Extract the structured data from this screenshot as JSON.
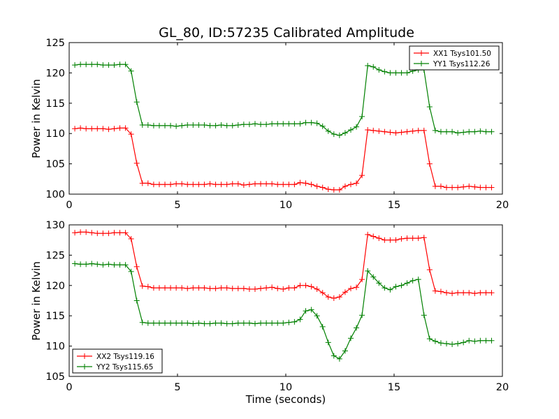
{
  "title": "GL_80, ID:57235 Calibrated Amplitude",
  "colors": {
    "red": "#ff0000",
    "green": "#008000",
    "axes": "#000000",
    "background": "#ffffff"
  },
  "chart_data": [
    {
      "type": "line",
      "title": "GL_80, ID:57235 Calibrated Amplitude",
      "xlabel": "",
      "ylabel": "Power in Kelvin",
      "xlim": [
        0,
        20
      ],
      "ylim": [
        100,
        125
      ],
      "xticks": [
        "0",
        "5",
        "10",
        "15",
        "20"
      ],
      "yticks": [
        "100",
        "105",
        "110",
        "115",
        "120",
        "125"
      ],
      "grid": false,
      "legend_position": "top-right",
      "series": [
        {
          "name": "XX1 Tsys101.50",
          "color": "#ff0000",
          "x": [
            0.26,
            0.52,
            0.78,
            1.04,
            1.3,
            1.56,
            1.82,
            2.08,
            2.34,
            2.6,
            2.86,
            3.12,
            3.38,
            3.64,
            3.9,
            4.16,
            4.42,
            4.68,
            4.94,
            5.2,
            5.46,
            5.72,
            5.98,
            6.24,
            6.5,
            6.76,
            7.02,
            7.28,
            7.54,
            7.8,
            8.06,
            8.32,
            8.58,
            8.84,
            9.1,
            9.36,
            9.62,
            9.88,
            10.14,
            10.4,
            10.66,
            10.92,
            11.18,
            11.44,
            11.7,
            11.96,
            12.22,
            12.48,
            12.74,
            13.0,
            13.26,
            13.52,
            13.78,
            14.04,
            14.3,
            14.56,
            14.82,
            15.08,
            15.34,
            15.6,
            15.86,
            16.12,
            16.38,
            16.64,
            16.9,
            17.16,
            17.42,
            17.68,
            17.94,
            18.2,
            18.46,
            18.72,
            18.98,
            19.24,
            19.5
          ],
          "y": [
            110.8,
            110.9,
            110.8,
            110.8,
            110.8,
            110.8,
            110.7,
            110.8,
            110.9,
            110.9,
            109.9,
            105.1,
            101.8,
            101.8,
            101.6,
            101.6,
            101.6,
            101.6,
            101.7,
            101.7,
            101.6,
            101.6,
            101.6,
            101.6,
            101.7,
            101.6,
            101.6,
            101.6,
            101.7,
            101.7,
            101.5,
            101.6,
            101.7,
            101.7,
            101.7,
            101.7,
            101.6,
            101.6,
            101.6,
            101.6,
            101.9,
            101.8,
            101.6,
            101.3,
            101.1,
            100.8,
            100.7,
            100.7,
            101.3,
            101.6,
            101.8,
            103.1,
            110.6,
            110.5,
            110.4,
            110.3,
            110.2,
            110.1,
            110.2,
            110.3,
            110.4,
            110.5,
            110.5,
            105.0,
            101.3,
            101.3,
            101.1,
            101.1,
            101.1,
            101.2,
            101.3,
            101.2,
            101.1,
            101.1,
            101.1
          ]
        },
        {
          "name": "YY1 Tsys112.26",
          "color": "#008000",
          "x": [
            0.26,
            0.52,
            0.78,
            1.04,
            1.3,
            1.56,
            1.82,
            2.08,
            2.34,
            2.6,
            2.86,
            3.12,
            3.38,
            3.64,
            3.9,
            4.16,
            4.42,
            4.68,
            4.94,
            5.2,
            5.46,
            5.72,
            5.98,
            6.24,
            6.5,
            6.76,
            7.02,
            7.28,
            7.54,
            7.8,
            8.06,
            8.32,
            8.58,
            8.84,
            9.1,
            9.36,
            9.62,
            9.88,
            10.14,
            10.4,
            10.66,
            10.92,
            11.18,
            11.44,
            11.7,
            11.96,
            12.22,
            12.48,
            12.74,
            13.0,
            13.26,
            13.52,
            13.78,
            14.04,
            14.3,
            14.56,
            14.82,
            15.08,
            15.34,
            15.6,
            15.86,
            16.12,
            16.38,
            16.64,
            16.9,
            17.16,
            17.42,
            17.68,
            17.94,
            18.2,
            18.46,
            18.72,
            18.98,
            19.24,
            19.5
          ],
          "y": [
            121.3,
            121.4,
            121.4,
            121.4,
            121.4,
            121.3,
            121.3,
            121.3,
            121.4,
            121.4,
            120.3,
            115.2,
            111.4,
            111.4,
            111.3,
            111.3,
            111.3,
            111.3,
            111.2,
            111.3,
            111.4,
            111.4,
            111.4,
            111.4,
            111.3,
            111.3,
            111.4,
            111.3,
            111.3,
            111.4,
            111.5,
            111.5,
            111.6,
            111.5,
            111.5,
            111.6,
            111.6,
            111.6,
            111.6,
            111.6,
            111.6,
            111.8,
            111.8,
            111.7,
            111.2,
            110.4,
            109.9,
            109.7,
            110.1,
            110.6,
            111.1,
            112.8,
            121.2,
            121.0,
            120.5,
            120.2,
            120.0,
            120.0,
            120.0,
            120.0,
            120.3,
            120.5,
            120.5,
            114.4,
            110.5,
            110.3,
            110.3,
            110.3,
            110.1,
            110.2,
            110.3,
            110.3,
            110.4,
            110.3,
            110.3
          ]
        }
      ]
    },
    {
      "type": "line",
      "title": "",
      "xlabel": "Time (seconds)",
      "ylabel": "Power in Kelvin",
      "xlim": [
        0,
        20
      ],
      "ylim": [
        105,
        130
      ],
      "xticks": [
        "0",
        "5",
        "10",
        "15",
        "20"
      ],
      "yticks": [
        "105",
        "110",
        "115",
        "120",
        "125",
        "130"
      ],
      "grid": false,
      "legend_position": "bottom-left",
      "series": [
        {
          "name": "XX2 Tsys119.16",
          "color": "#ff0000",
          "x": [
            0.26,
            0.52,
            0.78,
            1.04,
            1.3,
            1.56,
            1.82,
            2.08,
            2.34,
            2.6,
            2.86,
            3.12,
            3.38,
            3.64,
            3.9,
            4.16,
            4.42,
            4.68,
            4.94,
            5.2,
            5.46,
            5.72,
            5.98,
            6.24,
            6.5,
            6.76,
            7.02,
            7.28,
            7.54,
            7.8,
            8.06,
            8.32,
            8.58,
            8.84,
            9.1,
            9.36,
            9.62,
            9.88,
            10.14,
            10.4,
            10.66,
            10.92,
            11.18,
            11.44,
            11.7,
            11.96,
            12.22,
            12.48,
            12.74,
            13.0,
            13.26,
            13.52,
            13.78,
            14.04,
            14.3,
            14.56,
            14.82,
            15.08,
            15.34,
            15.6,
            15.86,
            16.12,
            16.38,
            16.64,
            16.9,
            17.16,
            17.42,
            17.68,
            17.94,
            18.2,
            18.46,
            18.72,
            18.98,
            19.24,
            19.5
          ],
          "y": [
            128.7,
            128.8,
            128.8,
            128.7,
            128.6,
            128.6,
            128.6,
            128.7,
            128.7,
            128.7,
            127.7,
            123.1,
            119.9,
            119.8,
            119.6,
            119.6,
            119.6,
            119.6,
            119.6,
            119.6,
            119.5,
            119.6,
            119.6,
            119.6,
            119.5,
            119.5,
            119.6,
            119.6,
            119.5,
            119.5,
            119.5,
            119.4,
            119.4,
            119.5,
            119.6,
            119.7,
            119.5,
            119.4,
            119.6,
            119.6,
            120.0,
            120.0,
            119.8,
            119.4,
            118.8,
            118.1,
            117.9,
            118.1,
            118.9,
            119.5,
            119.7,
            121.0,
            128.4,
            128.1,
            127.8,
            127.5,
            127.5,
            127.5,
            127.7,
            127.8,
            127.8,
            127.8,
            127.9,
            122.6,
            119.1,
            119.0,
            118.8,
            118.7,
            118.8,
            118.8,
            118.8,
            118.7,
            118.8,
            118.8,
            118.8
          ]
        },
        {
          "name": "YY2 Tsys115.65",
          "color": "#008000",
          "x": [
            0.26,
            0.52,
            0.78,
            1.04,
            1.3,
            1.56,
            1.82,
            2.08,
            2.34,
            2.6,
            2.86,
            3.12,
            3.38,
            3.64,
            3.9,
            4.16,
            4.42,
            4.68,
            4.94,
            5.2,
            5.46,
            5.72,
            5.98,
            6.24,
            6.5,
            6.76,
            7.02,
            7.28,
            7.54,
            7.8,
            8.06,
            8.32,
            8.58,
            8.84,
            9.1,
            9.36,
            9.62,
            9.88,
            10.14,
            10.4,
            10.66,
            10.92,
            11.18,
            11.44,
            11.7,
            11.96,
            12.22,
            12.48,
            12.74,
            13.0,
            13.26,
            13.52,
            13.78,
            14.04,
            14.3,
            14.56,
            14.82,
            15.08,
            15.34,
            15.6,
            15.86,
            16.12,
            16.38,
            16.64,
            16.9,
            17.16,
            17.42,
            17.68,
            17.94,
            18.2,
            18.46,
            18.72,
            18.98,
            19.24,
            19.5
          ],
          "y": [
            123.6,
            123.5,
            123.5,
            123.6,
            123.5,
            123.4,
            123.5,
            123.4,
            123.4,
            123.4,
            122.3,
            117.5,
            113.9,
            113.8,
            113.8,
            113.8,
            113.8,
            113.8,
            113.8,
            113.8,
            113.8,
            113.7,
            113.8,
            113.7,
            113.7,
            113.8,
            113.8,
            113.7,
            113.7,
            113.8,
            113.8,
            113.8,
            113.7,
            113.8,
            113.8,
            113.8,
            113.8,
            113.8,
            113.9,
            114.0,
            114.4,
            115.8,
            116.0,
            115.0,
            113.2,
            110.6,
            108.4,
            107.9,
            109.2,
            111.3,
            113.0,
            115.1,
            122.4,
            121.4,
            120.4,
            119.6,
            119.3,
            119.8,
            120.0,
            120.4,
            120.8,
            121.0,
            115.1,
            111.2,
            110.8,
            110.5,
            110.4,
            110.3,
            110.4,
            110.6,
            110.9,
            110.8,
            110.9,
            110.9,
            110.9
          ]
        }
      ]
    }
  ]
}
